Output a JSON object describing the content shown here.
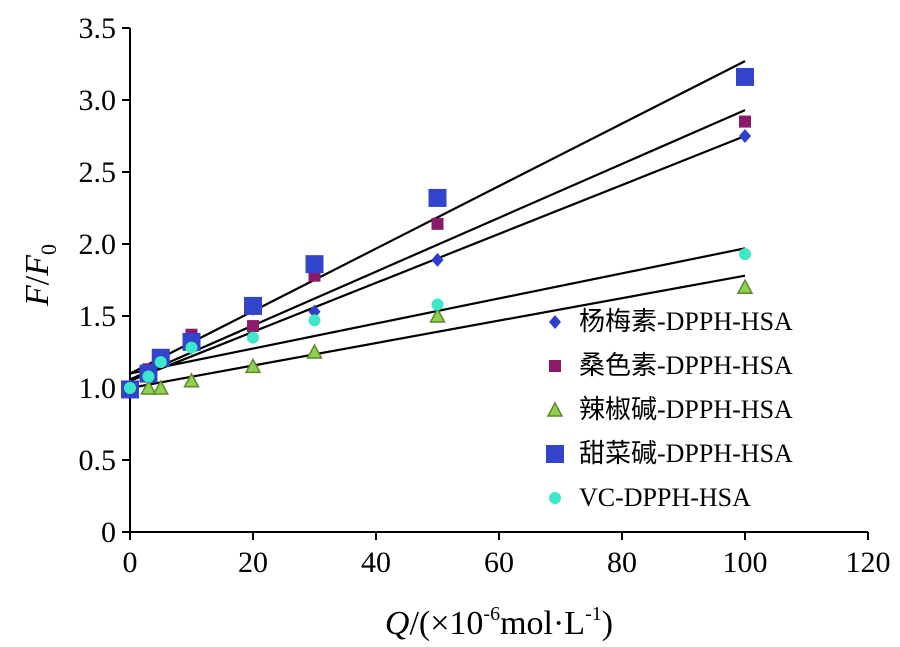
{
  "chart_data": {
    "type": "scatter",
    "x_axis": {
      "var": "Q",
      "label_rest": "/(×10",
      "exp1": "-6",
      "unit": "mol·L",
      "exp2": "-1",
      "close": ")",
      "range": [
        0,
        120
      ],
      "ticks": [
        0,
        20,
        40,
        60,
        80,
        100,
        120
      ],
      "tick_labels": [
        "0",
        "20",
        "40",
        "60",
        "80",
        "100",
        "120"
      ]
    },
    "y_axis": {
      "num": "F",
      "slash": "/",
      "den": "F",
      "sub": "0",
      "range": [
        0,
        3.5
      ],
      "ticks": [
        0,
        0.5,
        1.0,
        1.5,
        2.0,
        2.5,
        3.0,
        3.5
      ],
      "tick_labels": [
        "0",
        "0.5",
        "1.0",
        "1.5",
        "2.0",
        "2.5",
        "3.0",
        "3.5"
      ]
    },
    "grid": false,
    "legend_position": "right",
    "series": [
      {
        "name": "杨梅素-DPPH-HSA",
        "marker": "diamond",
        "color": "#2e3fd0",
        "x": [
          0,
          3,
          5,
          10,
          20,
          30,
          50,
          100
        ],
        "y": [
          1.0,
          1.12,
          1.2,
          1.28,
          1.55,
          1.53,
          1.89,
          2.75
        ],
        "fit": {
          "x": [
            0,
            100
          ],
          "y": [
            1.05,
            2.75
          ]
        }
      },
      {
        "name": "桑色素-DPPH-HSA",
        "marker": "square-small",
        "color": "#8b1a6b",
        "x": [
          0,
          3,
          5,
          10,
          20,
          30,
          50,
          100
        ],
        "y": [
          1.0,
          1.13,
          1.2,
          1.37,
          1.43,
          1.78,
          2.14,
          2.85
        ],
        "fit": {
          "x": [
            0,
            100
          ],
          "y": [
            1.06,
            2.93
          ]
        }
      },
      {
        "name": "辣椒碱-DPPH-HSA",
        "marker": "triangle",
        "color": "#8fd14f",
        "x": [
          0,
          3,
          5,
          10,
          20,
          30,
          50,
          100
        ],
        "y": [
          1.0,
          1.0,
          1.0,
          1.05,
          1.15,
          1.25,
          1.5,
          1.7
        ],
        "fit": {
          "x": [
            0,
            100
          ],
          "y": [
            1.0,
            1.78
          ]
        }
      },
      {
        "name": "甜菜碱-DPPH-HSA",
        "marker": "square",
        "color": "#3344cc",
        "x": [
          0,
          3,
          5,
          10,
          20,
          30,
          50,
          100
        ],
        "y": [
          0.99,
          1.1,
          1.21,
          1.32,
          1.57,
          1.86,
          2.32,
          3.16
        ],
        "fit": {
          "x": [
            0,
            100
          ],
          "y": [
            1.1,
            3.27
          ]
        }
      },
      {
        "name": "VC-DPPH-HSA",
        "marker": "circle",
        "color": "#3de8c8",
        "x": [
          0,
          3,
          5,
          10,
          20,
          30,
          50,
          100
        ],
        "y": [
          1.0,
          1.08,
          1.18,
          1.28,
          1.35,
          1.47,
          1.58,
          1.93
        ],
        "fit": {
          "x": [
            0,
            100
          ],
          "y": [
            1.1,
            1.97
          ]
        }
      }
    ]
  }
}
